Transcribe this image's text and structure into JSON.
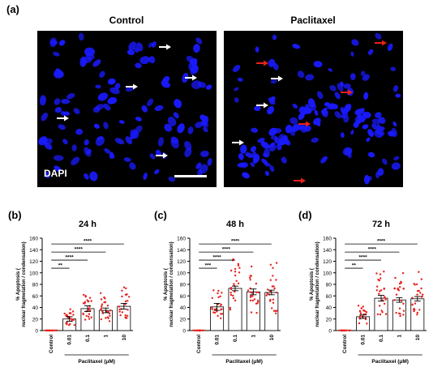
{
  "panels": {
    "a": "(a)",
    "b": "(b)",
    "c": "(c)",
    "d": "(d)"
  },
  "micrographs": {
    "left_title": "Control",
    "right_title": "Paclitaxel",
    "stain_label": "DAPI",
    "nucleus_color": "#1a1aff",
    "background_color": "#000000",
    "white_arrow_color": "#ffffff",
    "red_arrow_color": "#e8201c"
  },
  "chart_data": [
    {
      "type": "bar",
      "title": "24 h",
      "categories": [
        "Control",
        "0.01",
        "0.1",
        "1",
        "10"
      ],
      "values": [
        0,
        20,
        38,
        35,
        42
      ],
      "errors": [
        0,
        4,
        5,
        4,
        5
      ],
      "ylabel": "% Apoptosis (nuclear fragmetation / condensation)",
      "xlabel": "Paclitaxel (μM)",
      "ylim": [
        0,
        160
      ],
      "yticks": [
        0,
        20,
        40,
        60,
        80,
        100,
        120,
        140,
        160
      ],
      "significance": [
        "**",
        "****",
        "****",
        "****"
      ],
      "point_color": "#e8201c",
      "bar_color": "#ffffff"
    },
    {
      "type": "bar",
      "title": "48 h",
      "categories": [
        "Control",
        "0.01",
        "0.1",
        "1",
        "10"
      ],
      "values": [
        0,
        41,
        73,
        67,
        66
      ],
      "errors": [
        0,
        6,
        4,
        5,
        4
      ],
      "ylabel": "% Apoptosis (nuclear fragmetation / condensation)",
      "xlabel": "Paclitaxel (μM)",
      "ylim": [
        0,
        160
      ],
      "yticks": [
        0,
        20,
        40,
        60,
        80,
        100,
        120,
        140,
        160
      ],
      "significance": [
        "***",
        "****",
        "****",
        "****"
      ],
      "point_color": "#e8201c",
      "bar_color": "#ffffff"
    },
    {
      "type": "bar",
      "title": "72 h",
      "categories": [
        "Control",
        "0.01",
        "0.1",
        "1",
        "10"
      ],
      "values": [
        0,
        24,
        56,
        53,
        55
      ],
      "errors": [
        0,
        3,
        5,
        4,
        4
      ],
      "ylabel": "% Apoptosis (nuclear fragmetation / condensation)",
      "xlabel": "Paclitaxel (μM)",
      "ylim": [
        0,
        160
      ],
      "yticks": [
        0,
        20,
        40,
        60,
        80,
        100,
        120,
        140,
        160
      ],
      "significance": [
        "**",
        "****",
        "****",
        "****"
      ],
      "point_color": "#e8201c",
      "bar_color": "#ffffff"
    }
  ]
}
